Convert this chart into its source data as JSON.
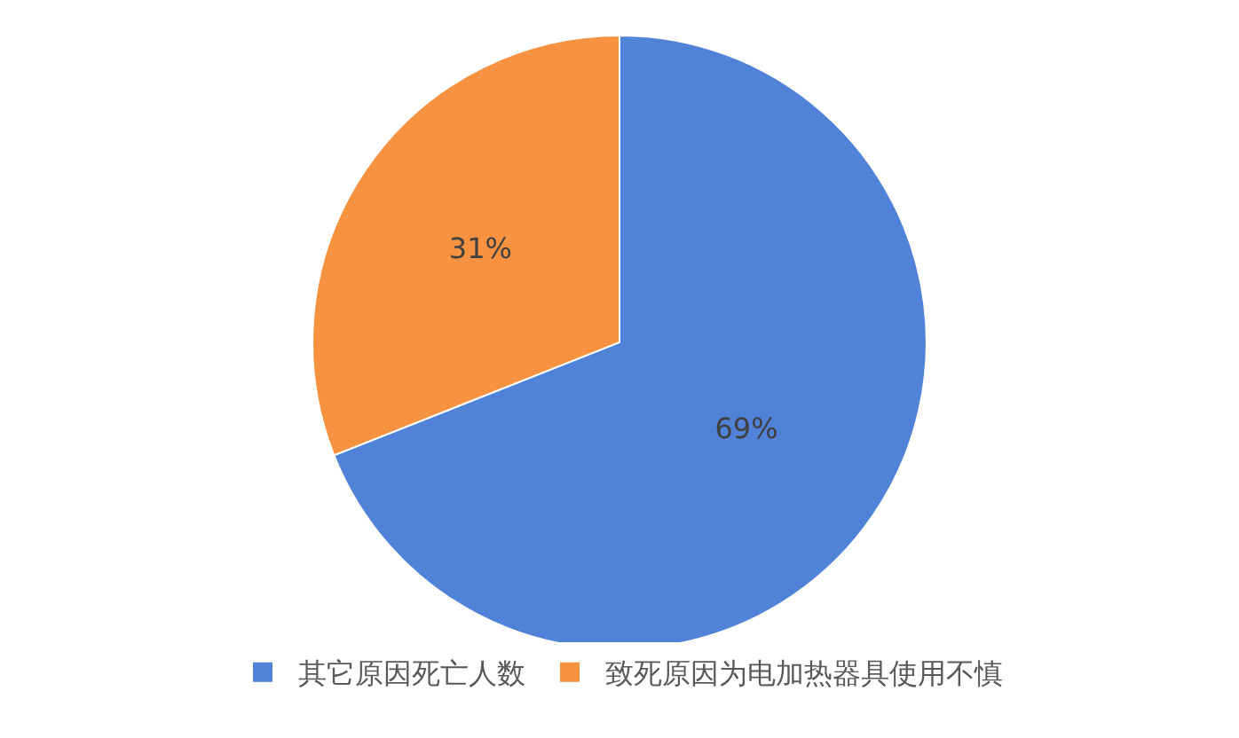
{
  "chart_data": {
    "type": "pie",
    "categories": [
      "其它原因死亡人数",
      "致死原因为电加热器具使用不慎"
    ],
    "values": [
      69,
      31
    ],
    "colors": [
      "#5082d8",
      "#f69240"
    ],
    "value_labels": [
      "69%",
      "31%"
    ],
    "legend": "bottom"
  }
}
